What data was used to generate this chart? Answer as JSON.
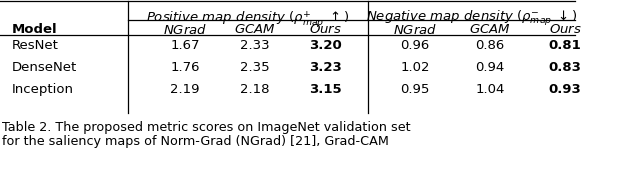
{
  "caption1": "Table 2. The proposed metric scores on ImageNet validation set",
  "caption2": "for the saliency maps of Norm-Grad (NGrad) [21], Grad-CAM",
  "rows": [
    {
      "model": "ResNet",
      "pos": [
        "1.67",
        "2.33",
        "3.20"
      ],
      "neg": [
        "0.96",
        "0.86",
        "0.81"
      ]
    },
    {
      "model": "DenseNet",
      "pos": [
        "1.76",
        "2.35",
        "3.23"
      ],
      "neg": [
        "1.02",
        "0.94",
        "0.83"
      ]
    },
    {
      "model": "Inception",
      "pos": [
        "2.19",
        "2.18",
        "3.15"
      ],
      "neg": [
        "0.95",
        "1.04",
        "0.93"
      ]
    }
  ],
  "bg_color": "#ffffff",
  "text_color": "#000000",
  "fs_table": 9.5,
  "fs_caption": 9.2
}
